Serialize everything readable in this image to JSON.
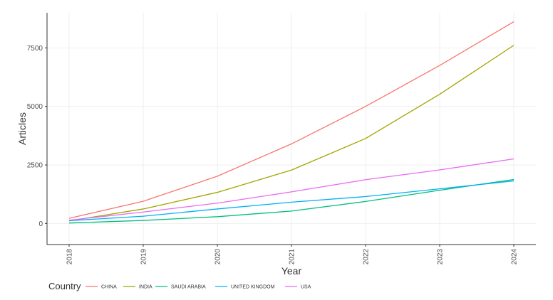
{
  "chart_data": {
    "type": "line",
    "xlabel": "Year",
    "ylabel": "Articles",
    "x": [
      "2018",
      "2019",
      "2020",
      "2021",
      "2022",
      "2023",
      "2024"
    ],
    "ylim": [
      -900,
      9000
    ],
    "yticks": [
      0,
      2500,
      5000,
      7500
    ],
    "ytick_labels": [
      "0",
      "2500",
      "5000",
      "7500"
    ],
    "grid": true,
    "legend_title": "Country",
    "legend_position": "bottom-left",
    "series": [
      {
        "name": "CHINA",
        "color": "#F8766D",
        "values": [
          220,
          950,
          2020,
          3400,
          5000,
          6750,
          8620
        ]
      },
      {
        "name": "INDIA",
        "color": "#A3A500",
        "values": [
          110,
          620,
          1330,
          2280,
          3630,
          5520,
          7610
        ]
      },
      {
        "name": "SAUDI ARABIA",
        "color": "#00BF7D",
        "values": [
          20,
          130,
          290,
          530,
          940,
          1420,
          1880
        ]
      },
      {
        "name": "UNITED KINGDOM",
        "color": "#00B0F6",
        "values": [
          120,
          310,
          620,
          910,
          1150,
          1480,
          1820
        ]
      },
      {
        "name": "USA",
        "color": "#E76BF3",
        "values": [
          140,
          490,
          870,
          1350,
          1870,
          2290,
          2760
        ]
      }
    ]
  }
}
